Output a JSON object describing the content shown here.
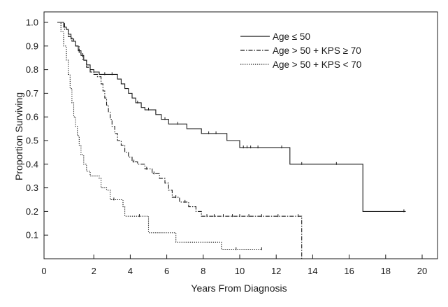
{
  "chart_data": {
    "type": "line",
    "title": "",
    "xlabel": "Years From Diagnosis",
    "ylabel": "Proportion Surviving",
    "xlim": [
      0,
      20
    ],
    "ylim": [
      0,
      1.0
    ],
    "x_ticks": [
      {
        "value": 0,
        "label": "0"
      },
      {
        "value": 2,
        "label": "2"
      },
      {
        "value": 4,
        "label": "4"
      },
      {
        "value": 6,
        "label": "6"
      },
      {
        "value": 8,
        "label": "8"
      },
      {
        "value": 10,
        "label": "10"
      },
      {
        "value": 12,
        "label": "12"
      },
      {
        "value": 14,
        "label": "14"
      },
      {
        "value": 16,
        "label": "16"
      },
      {
        "value": 18,
        "label": "18"
      },
      {
        "value": 20,
        "label": "20"
      }
    ],
    "y_ticks": [
      {
        "value": 0.1,
        "label": "0.1"
      },
      {
        "value": 0.2,
        "label": "0.2"
      },
      {
        "value": 0.3,
        "label": "0.3"
      },
      {
        "value": 0.4,
        "label": "0.4"
      },
      {
        "value": 0.5,
        "label": "0.5"
      },
      {
        "value": 0.6,
        "label": "0.6"
      },
      {
        "value": 0.7,
        "label": "0.7"
      },
      {
        "value": 0.8,
        "label": "0.8"
      },
      {
        "value": 0.9,
        "label": "0.9"
      },
      {
        "value": 1.0,
        "label": "1.0"
      }
    ],
    "grid": false,
    "legend_position": "top-right",
    "series": [
      {
        "name": "Age ≤ 50",
        "style": "solid",
        "color": "#1a1a1a",
        "points": [
          [
            0.0,
            1.0
          ],
          [
            0.3,
            1.0
          ],
          [
            0.35,
            0.98
          ],
          [
            0.5,
            0.97
          ],
          [
            0.6,
            0.95
          ],
          [
            0.75,
            0.93
          ],
          [
            0.9,
            0.92
          ],
          [
            1.0,
            0.9
          ],
          [
            1.15,
            0.88
          ],
          [
            1.3,
            0.86
          ],
          [
            1.45,
            0.84
          ],
          [
            1.6,
            0.82
          ],
          [
            1.8,
            0.8
          ],
          [
            2.0,
            0.79
          ],
          [
            2.3,
            0.78
          ],
          [
            3.2,
            0.78
          ],
          [
            3.3,
            0.76
          ],
          [
            3.5,
            0.74
          ],
          [
            3.7,
            0.72
          ],
          [
            3.9,
            0.7
          ],
          [
            4.1,
            0.68
          ],
          [
            4.3,
            0.66
          ],
          [
            4.6,
            0.64
          ],
          [
            4.8,
            0.63
          ],
          [
            5.4,
            0.61
          ],
          [
            5.7,
            0.59
          ],
          [
            6.1,
            0.57
          ],
          [
            7.0,
            0.57
          ],
          [
            7.1,
            0.55
          ],
          [
            7.8,
            0.55
          ],
          [
            7.9,
            0.53
          ],
          [
            9.2,
            0.53
          ],
          [
            9.3,
            0.5
          ],
          [
            9.9,
            0.5
          ],
          [
            10.0,
            0.47
          ],
          [
            12.7,
            0.47
          ],
          [
            12.75,
            0.4
          ],
          [
            16.7,
            0.4
          ],
          [
            16.75,
            0.2
          ],
          [
            19.1,
            0.2
          ]
        ],
        "censor_x": [
          1.2,
          2.6,
          3.0,
          4.4,
          5.0,
          5.9,
          6.6,
          8.3,
          8.7,
          10.2,
          10.4,
          10.6,
          11.0,
          12.3,
          13.4,
          15.3,
          19.0
        ]
      },
      {
        "name": "Age > 50 + KPS ≥ 70",
        "style": "dashdot",
        "color": "#1a1a1a",
        "points": [
          [
            0.0,
            1.0
          ],
          [
            0.3,
            1.0
          ],
          [
            0.4,
            0.97
          ],
          [
            0.6,
            0.94
          ],
          [
            0.8,
            0.92
          ],
          [
            1.0,
            0.9
          ],
          [
            1.2,
            0.87
          ],
          [
            1.4,
            0.84
          ],
          [
            1.6,
            0.81
          ],
          [
            1.8,
            0.79
          ],
          [
            2.0,
            0.78
          ],
          [
            2.2,
            0.77
          ],
          [
            2.4,
            0.74
          ],
          [
            2.5,
            0.71
          ],
          [
            2.6,
            0.68
          ],
          [
            2.7,
            0.65
          ],
          [
            2.8,
            0.62
          ],
          [
            2.9,
            0.59
          ],
          [
            3.0,
            0.56
          ],
          [
            3.15,
            0.53
          ],
          [
            3.3,
            0.5
          ],
          [
            3.5,
            0.48
          ],
          [
            3.7,
            0.45
          ],
          [
            3.9,
            0.43
          ],
          [
            4.1,
            0.41
          ],
          [
            4.4,
            0.4
          ],
          [
            4.8,
            0.38
          ],
          [
            5.2,
            0.36
          ],
          [
            5.6,
            0.34
          ],
          [
            5.9,
            0.32
          ],
          [
            6.1,
            0.29
          ],
          [
            6.3,
            0.26
          ],
          [
            6.7,
            0.24
          ],
          [
            7.2,
            0.22
          ],
          [
            7.6,
            0.2
          ],
          [
            7.9,
            0.18
          ],
          [
            13.4,
            0.18
          ],
          [
            13.4,
            0.0
          ]
        ],
        "censor_x": [
          4.2,
          4.9,
          5.3,
          6.5,
          7.0,
          8.2,
          8.6,
          9.1,
          9.6,
          10.0,
          10.5,
          11.2,
          12.1,
          13.2
        ]
      },
      {
        "name": "Age > 50 + KPS < 70",
        "style": "dotted",
        "color": "#1a1a1a",
        "points": [
          [
            0.0,
            1.0
          ],
          [
            0.2,
            0.96
          ],
          [
            0.35,
            0.9
          ],
          [
            0.5,
            0.84
          ],
          [
            0.6,
            0.78
          ],
          [
            0.7,
            0.72
          ],
          [
            0.8,
            0.66
          ],
          [
            0.9,
            0.6
          ],
          [
            1.0,
            0.56
          ],
          [
            1.1,
            0.52
          ],
          [
            1.2,
            0.48
          ],
          [
            1.3,
            0.44
          ],
          [
            1.45,
            0.4
          ],
          [
            1.6,
            0.37
          ],
          [
            1.8,
            0.35
          ],
          [
            2.3,
            0.34
          ],
          [
            2.4,
            0.3
          ],
          [
            2.7,
            0.29
          ],
          [
            2.9,
            0.25
          ],
          [
            3.5,
            0.25
          ],
          [
            3.6,
            0.22
          ],
          [
            3.7,
            0.18
          ],
          [
            4.9,
            0.18
          ],
          [
            5.0,
            0.11
          ],
          [
            6.4,
            0.11
          ],
          [
            6.5,
            0.07
          ],
          [
            8.9,
            0.07
          ],
          [
            9.0,
            0.04
          ],
          [
            11.2,
            0.04
          ]
        ],
        "censor_x": [
          3.1,
          4.5,
          9.8,
          11.2
        ]
      }
    ]
  }
}
